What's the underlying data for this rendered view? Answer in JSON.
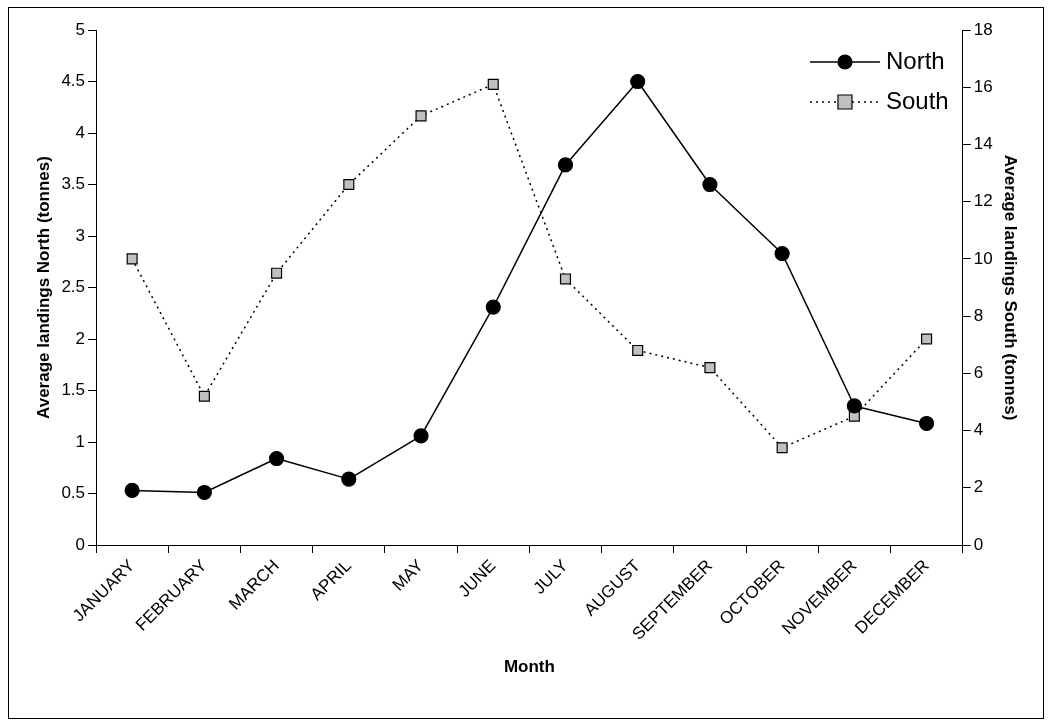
{
  "chart_data": {
    "type": "line",
    "xlabel": "Month",
    "ylabel": "Average landings North (tonnes)",
    "y2label": "Average landings South (tonnes)",
    "categories": [
      "JANUARY",
      "FEBRUARY",
      "MARCH",
      "APRIL",
      "MAY",
      "JUNE",
      "JULY",
      "AUGUST",
      "SEPTEMBER",
      "OCTOBER",
      "NOVEMBER",
      "DECEMBER"
    ],
    "series": [
      {
        "name": "North",
        "color": "#000000",
        "marker": "circle",
        "line_style": "solid",
        "values": [
          0.53,
          0.51,
          0.84,
          0.64,
          1.06,
          2.31,
          3.69,
          4.5,
          3.5,
          2.83,
          1.35,
          1.18
        ]
      },
      {
        "name": "South",
        "color": "#c0c0c0",
        "marker": "square",
        "line_style": "dotted",
        "axis": "y2",
        "values": [
          10.0,
          5.2,
          9.5,
          12.6,
          15.0,
          16.1,
          9.3,
          6.8,
          6.2,
          3.4,
          4.5,
          7.2
        ]
      }
    ],
    "ylim": [
      0,
      5
    ],
    "yticks": [
      0,
      0.5,
      1,
      1.5,
      2,
      2.5,
      3,
      3.5,
      4,
      4.5,
      5
    ],
    "y2lim": [
      0,
      18
    ],
    "y2ticks": [
      0,
      2,
      4,
      6,
      8,
      10,
      12,
      14,
      16,
      18
    ],
    "grid": false,
    "legend": "top right"
  }
}
